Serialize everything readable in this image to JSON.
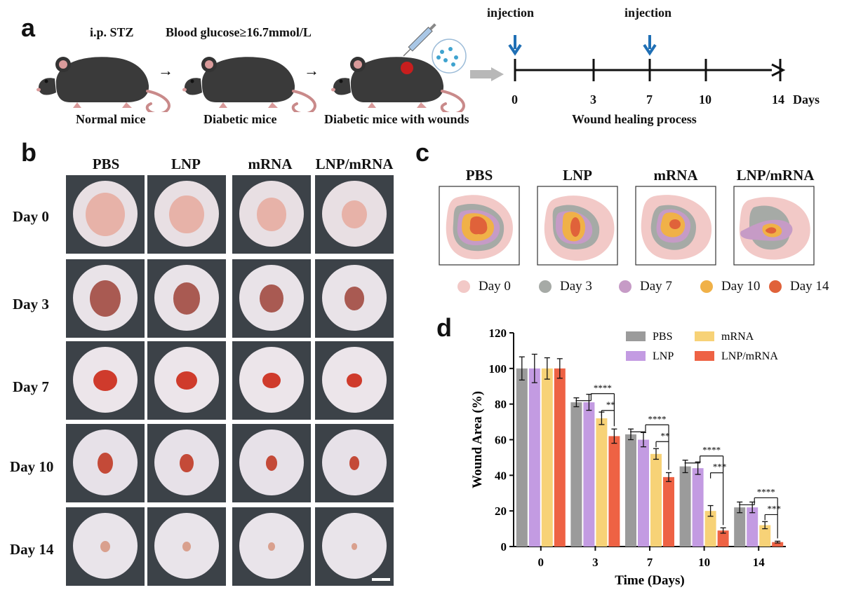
{
  "panels": {
    "a": "a",
    "b": "b",
    "c": "c",
    "d": "d"
  },
  "panel_a": {
    "steps": [
      {
        "top_label": "i.p. STZ",
        "bottom_label": "Normal mice"
      },
      {
        "top_label": "Blood glucose≥16.7mmol/L",
        "bottom_label": "Diabetic mice"
      },
      {
        "top_label": "",
        "bottom_label": "Diabetic mice with wounds"
      }
    ],
    "timeline": {
      "ticks": [
        "0",
        "3",
        "7",
        "10",
        "14"
      ],
      "unit": "Days",
      "injection_label": "injection",
      "injection_days": [
        "0",
        "7"
      ],
      "caption": "Wound healing process"
    }
  },
  "panel_b": {
    "columns": [
      "PBS",
      "LNP",
      "mRNA",
      "LNP/mRNA"
    ],
    "rows": [
      "Day 0",
      "Day 3",
      "Day 7",
      "Day 10",
      "Day 14"
    ]
  },
  "panel_c": {
    "columns": [
      "PBS",
      "LNP",
      "mRNA",
      "LNP/mRNA"
    ],
    "legend": [
      {
        "label": "Day 0",
        "color": "#f2c9c7"
      },
      {
        "label": "Day 3",
        "color": "#a6aaa6"
      },
      {
        "label": "Day 7",
        "color": "#c69bc6"
      },
      {
        "label": "Day 10",
        "color": "#f0b148"
      },
      {
        "label": "Day 14",
        "color": "#e0623a"
      }
    ]
  },
  "chart_data": {
    "type": "bar",
    "xlabel": "Time (Days)",
    "ylabel": "Wound Area (%)",
    "ylim": [
      0,
      120
    ],
    "yticks": [
      0,
      20,
      40,
      60,
      80,
      100,
      120
    ],
    "categories": [
      "0",
      "3",
      "7",
      "10",
      "14"
    ],
    "legend_position": "top-right",
    "series": [
      {
        "name": "PBS",
        "color": "#9b9b9b",
        "values": [
          100,
          81,
          63,
          45,
          22
        ],
        "errors": [
          6.5,
          2.5,
          3,
          3.5,
          3
        ]
      },
      {
        "name": "LNP",
        "color": "#c39be2",
        "values": [
          100,
          81,
          60,
          44,
          22
        ],
        "errors": [
          8,
          4.5,
          4,
          3.5,
          3
        ]
      },
      {
        "name": "mRNA",
        "color": "#f7d277",
        "values": [
          100,
          72,
          52,
          20,
          12
        ],
        "errors": [
          6,
          3.5,
          3,
          3,
          2
        ]
      },
      {
        "name": "LNP/mRNA",
        "color": "#ee6244",
        "values": [
          100,
          62,
          39,
          9,
          2.5
        ],
        "errors": [
          5.5,
          4,
          2.5,
          1.5,
          0.5
        ]
      }
    ],
    "significance": [
      {
        "category": "3",
        "pairs": [
          {
            "label": "****"
          },
          {
            "label": "**"
          }
        ]
      },
      {
        "category": "7",
        "pairs": [
          {
            "label": "****"
          },
          {
            "label": "**"
          }
        ]
      },
      {
        "category": "10",
        "pairs": [
          {
            "label": "****"
          },
          {
            "label": "***"
          }
        ]
      },
      {
        "category": "14",
        "pairs": [
          {
            "label": "****"
          },
          {
            "label": "***"
          }
        ]
      }
    ]
  }
}
